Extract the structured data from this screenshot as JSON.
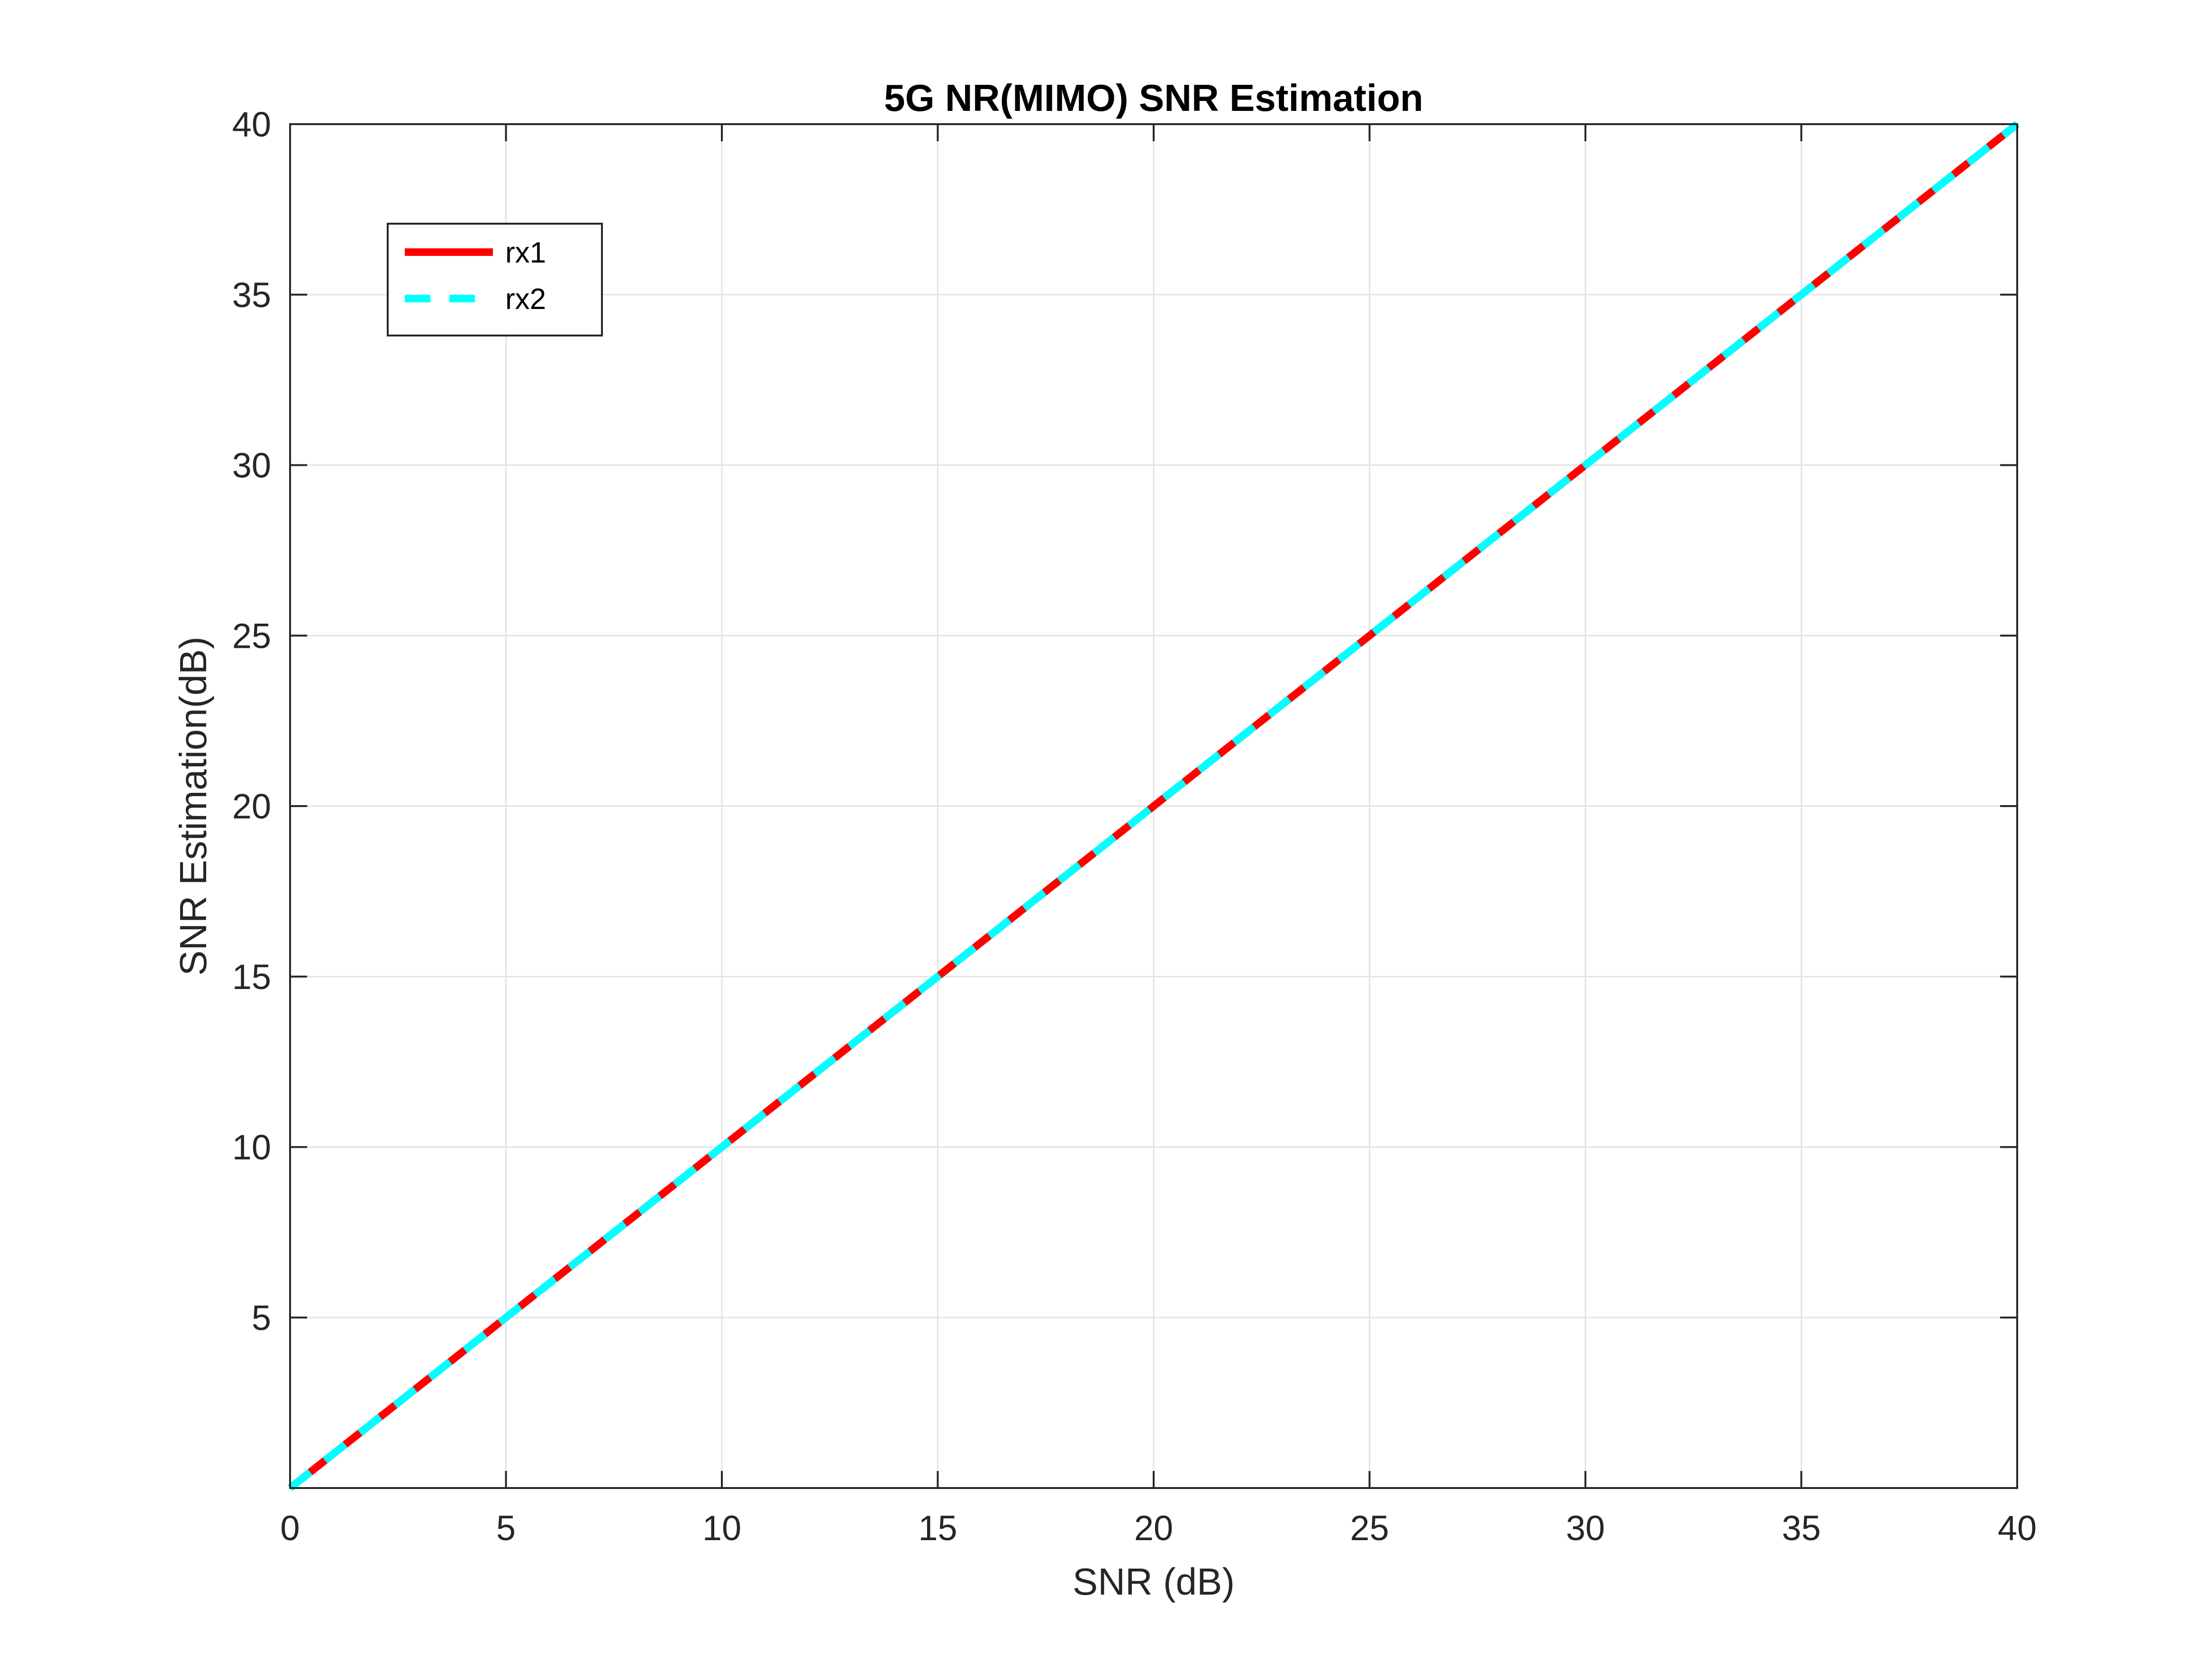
{
  "chart_data": {
    "type": "line",
    "title": "5G NR(MIMO) SNR Estimation",
    "xlabel": "SNR (dB)",
    "ylabel": "SNR Estimation(dB)",
    "xlim": [
      0,
      40
    ],
    "ylim": [
      0,
      40
    ],
    "xticks": [
      0,
      5,
      10,
      15,
      20,
      25,
      30,
      35,
      40
    ],
    "yticks": [
      5,
      10,
      15,
      20,
      25,
      30,
      35,
      40
    ],
    "grid": true,
    "legend_position": "top-left",
    "x": [
      0,
      5,
      10,
      15,
      20,
      25,
      30,
      35,
      40
    ],
    "series": [
      {
        "name": "rx1",
        "values": [
          0,
          5,
          10,
          15,
          20,
          25,
          30,
          35,
          40
        ],
        "color": "#ff0000",
        "style": "solid"
      },
      {
        "name": "rx2",
        "values": [
          0,
          5,
          10,
          15,
          20,
          25,
          30,
          35,
          40
        ],
        "color": "#00ffff",
        "style": "dashed"
      }
    ]
  }
}
